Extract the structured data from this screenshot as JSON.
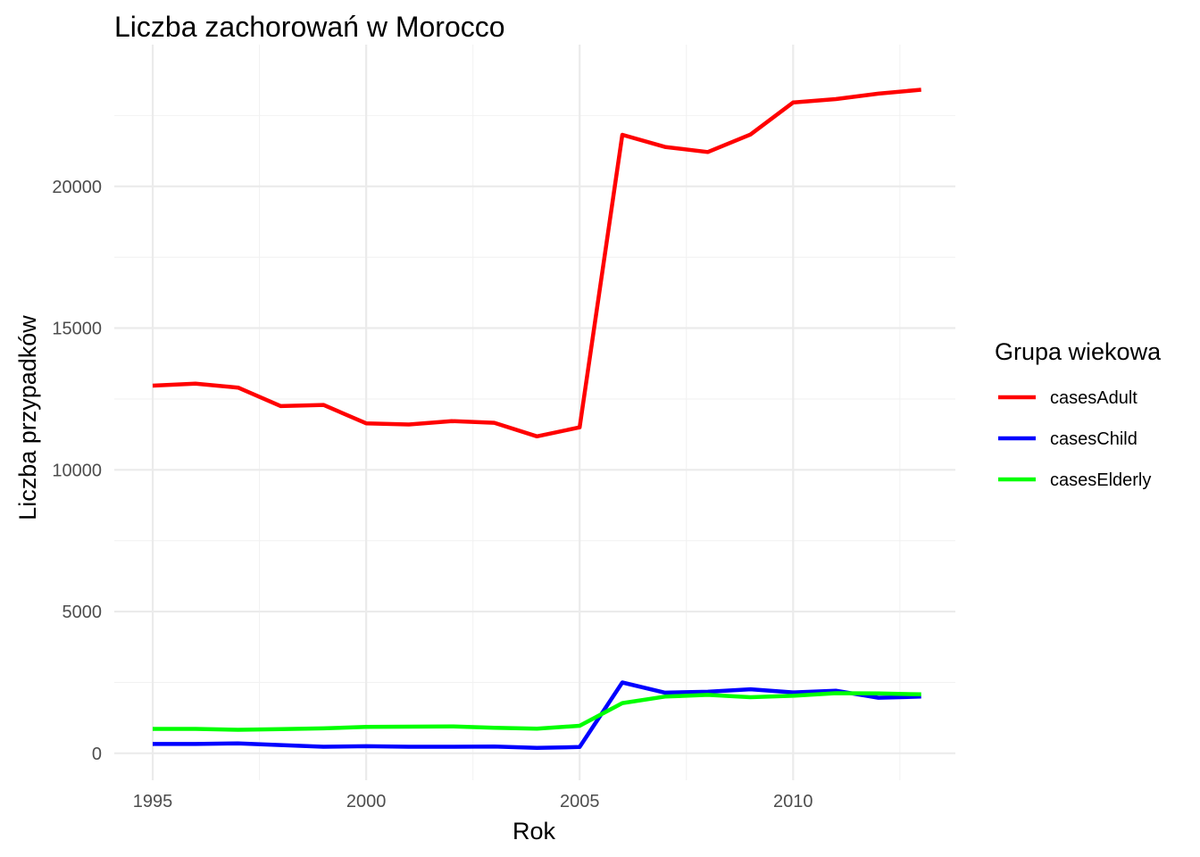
{
  "chart_data": {
    "type": "line",
    "title": "Liczba zachorowań w Morocco",
    "xlabel": "Rok",
    "ylabel": "Liczba przypadków",
    "x": [
      1995,
      1996,
      1997,
      1998,
      1999,
      2000,
      2001,
      2002,
      2003,
      2004,
      2005,
      2006,
      2007,
      2008,
      2009,
      2010,
      2011,
      2012,
      2013
    ],
    "xlim": [
      1994.1,
      2013.8
    ],
    "ylim": [
      -950,
      25000
    ],
    "xticks": [
      1995,
      2000,
      2005,
      2010
    ],
    "xtick_labels": [
      "1995",
      "2000",
      "2005",
      "2010"
    ],
    "yticks": [
      0,
      5000,
      10000,
      15000,
      20000
    ],
    "ytick_labels": [
      "0",
      "5000",
      "10000",
      "15000",
      "20000"
    ],
    "grid": true,
    "legend": {
      "title": "Grupa wiekowa",
      "position": "right"
    },
    "series": [
      {
        "name": "casesAdult",
        "color": "#ff0000",
        "values": [
          12970,
          13040,
          12900,
          12250,
          12290,
          11640,
          11600,
          11720,
          11660,
          11180,
          11500,
          21820,
          21390,
          21210,
          21830,
          22960,
          23080,
          23270,
          23410
        ]
      },
      {
        "name": "casesChild",
        "color": "#0000ff",
        "values": [
          330,
          330,
          350,
          290,
          230,
          250,
          230,
          230,
          240,
          190,
          220,
          2500,
          2140,
          2170,
          2260,
          2150,
          2210,
          1960,
          2000
        ]
      },
      {
        "name": "casesElderly",
        "color": "#00ff00",
        "values": [
          860,
          860,
          830,
          850,
          880,
          930,
          940,
          950,
          900,
          870,
          970,
          1770,
          2000,
          2060,
          1980,
          2030,
          2120,
          2110,
          2080
        ]
      }
    ]
  }
}
